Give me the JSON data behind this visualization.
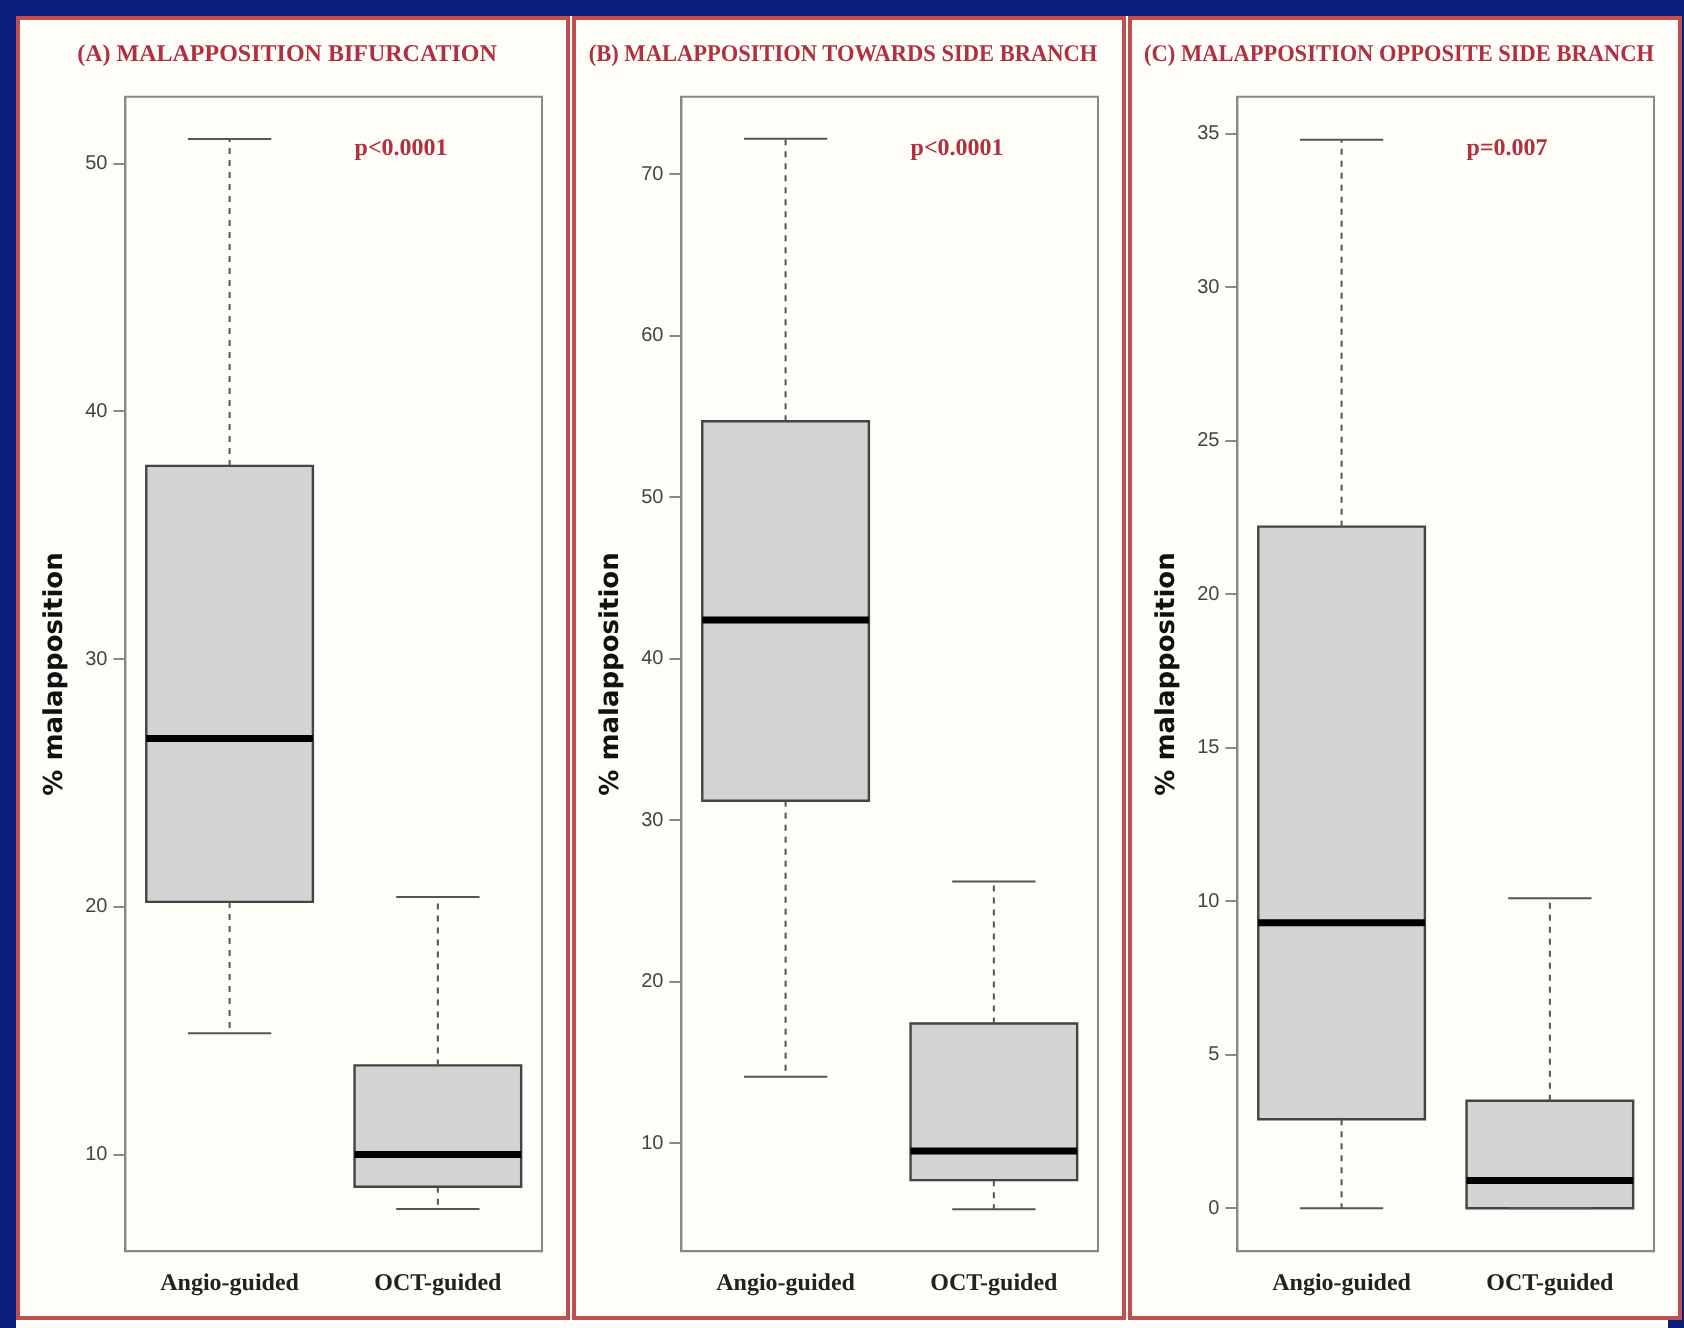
{
  "chart_data": [
    {
      "type": "box",
      "title": "(A) MALAPPOSITION BIFURCATION",
      "ylabel": "% malapposition",
      "categories": [
        "Angio-guided",
        "OCT-guided"
      ],
      "color": "#d3d3d3",
      "ylim": [
        6.1,
        52.7
      ],
      "yticks": [
        10,
        20,
        30,
        40,
        50
      ],
      "grid": false,
      "legend": false,
      "annotations": [
        "p<0.0001"
      ],
      "boxes": [
        {
          "low": 14.9,
          "q1": 20.2,
          "median": 26.8,
          "q3": 37.8,
          "high": 51
        },
        {
          "low": 7.8,
          "q1": 8.7,
          "median": 10,
          "q3": 13.6,
          "high": 20.4
        }
      ]
    },
    {
      "type": "box",
      "title": "(B) MALAPPOSITION TOWARDS SIDE BRANCH",
      "ylabel": "% malapposition",
      "categories": [
        "Angio-guided",
        "OCT-guided"
      ],
      "color": "#d3d3d3",
      "ylim": [
        3.3,
        74.8
      ],
      "yticks": [
        10,
        20,
        30,
        40,
        50,
        60,
        70
      ],
      "grid": false,
      "legend": false,
      "annotations": [
        "p<0.0001"
      ],
      "boxes": [
        {
          "low": 14.1,
          "q1": 31.2,
          "median": 42.4,
          "q3": 54.7,
          "high": 72.2
        },
        {
          "low": 5.9,
          "q1": 7.7,
          "median": 9.5,
          "q3": 17.4,
          "high": 26.2
        }
      ]
    },
    {
      "type": "box",
      "title": "(C) MALAPPOSITION OPPOSITE SIDE BRANCH",
      "ylabel": "% malapposition",
      "categories": [
        "Angio-guided",
        "OCT-guided"
      ],
      "color": "#d3d3d3",
      "ylim": [
        -1.4,
        36.2
      ],
      "yticks": [
        0,
        5,
        10,
        15,
        20,
        25,
        30,
        35
      ],
      "grid": false,
      "legend": false,
      "annotations": [
        "p=0.007"
      ],
      "boxes": [
        {
          "low": 0,
          "q1": 2.9,
          "median": 9.3,
          "q3": 22.2,
          "high": 34.8
        },
        {
          "low": 0,
          "q1": 0,
          "median": 0.9,
          "q3": 3.5,
          "high": 10.1
        }
      ]
    }
  ]
}
